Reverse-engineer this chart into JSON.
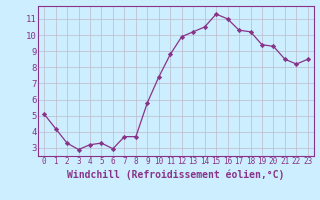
{
  "x": [
    0,
    1,
    2,
    3,
    4,
    5,
    6,
    7,
    8,
    9,
    10,
    11,
    12,
    13,
    14,
    15,
    16,
    17,
    18,
    19,
    20,
    21,
    22,
    23
  ],
  "y": [
    5.1,
    4.2,
    3.3,
    2.9,
    3.2,
    3.3,
    2.95,
    3.7,
    3.7,
    5.8,
    7.4,
    8.8,
    9.9,
    10.2,
    10.5,
    11.3,
    11.0,
    10.3,
    10.2,
    9.4,
    9.3,
    8.5,
    8.2,
    8.5
  ],
  "line_color": "#883388",
  "marker": "D",
  "marker_size": 2.2,
  "bg_color": "#cceeff",
  "grid_color": "#bbbbcc",
  "xlabel": "Windchill (Refroidissement éolien,°C)",
  "xlabel_fontsize": 7,
  "ytick_labels": [
    "3",
    "4",
    "5",
    "6",
    "7",
    "8",
    "9",
    "10",
    "11"
  ],
  "ytick_values": [
    3,
    4,
    5,
    6,
    7,
    8,
    9,
    10,
    11
  ],
  "ylim": [
    2.5,
    11.8
  ],
  "xlim": [
    -0.5,
    23.5
  ],
  "xtick_fontsize": 5.5,
  "ytick_fontsize": 6.5
}
